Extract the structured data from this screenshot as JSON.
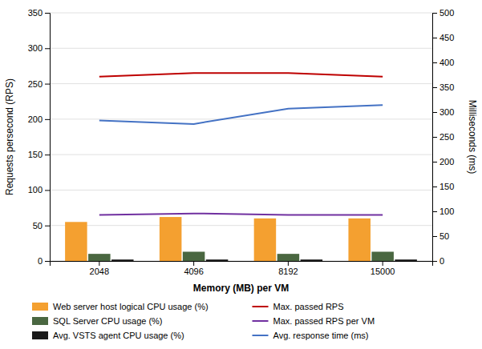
{
  "chart_data": {
    "type": "bar",
    "categories": [
      "2048",
      "4096",
      "8192",
      "15000"
    ],
    "x_label": "Memory (MB) per VM",
    "y_label": "Requests persecond (RPS)",
    "y2_label": "Milliseconds (ms)",
    "series": [
      {
        "name": "Web server host logical CPU usage (%)",
        "type": "bar",
        "color": "#F4A030",
        "values": [
          55,
          62,
          60,
          60
        ]
      },
      {
        "name": "SQL Server CPU usage (%)",
        "type": "bar",
        "color": "#4A6741",
        "values": [
          10,
          13,
          10,
          13
        ]
      },
      {
        "name": "Avg. VSTS agent CPU usage (%)",
        "type": "bar",
        "color": "#1A1A1A",
        "values": [
          2,
          2,
          2,
          2
        ]
      },
      {
        "name": "Max. passed RPS",
        "type": "line",
        "color": "#BE0000",
        "values": [
          260,
          265,
          265,
          260
        ]
      },
      {
        "name": "Max. passed RPS per VM",
        "type": "line",
        "color": "#7030A0",
        "values": [
          65,
          67,
          65,
          65
        ]
      },
      {
        "name": "Avg. response time (ms)",
        "type": "line",
        "color": "#4472C4",
        "axis": "y2",
        "values": [
          283,
          276,
          307,
          314
        ]
      }
    ],
    "ylim": [
      0,
      350
    ],
    "yticks": [
      0,
      50,
      100,
      150,
      200,
      250,
      300,
      350
    ],
    "y2lim": [
      0,
      500
    ],
    "y2ticks": [
      0,
      50,
      100,
      150,
      200,
      250,
      300,
      350,
      400,
      450,
      500
    ],
    "grid": true,
    "legend": "bottom"
  }
}
